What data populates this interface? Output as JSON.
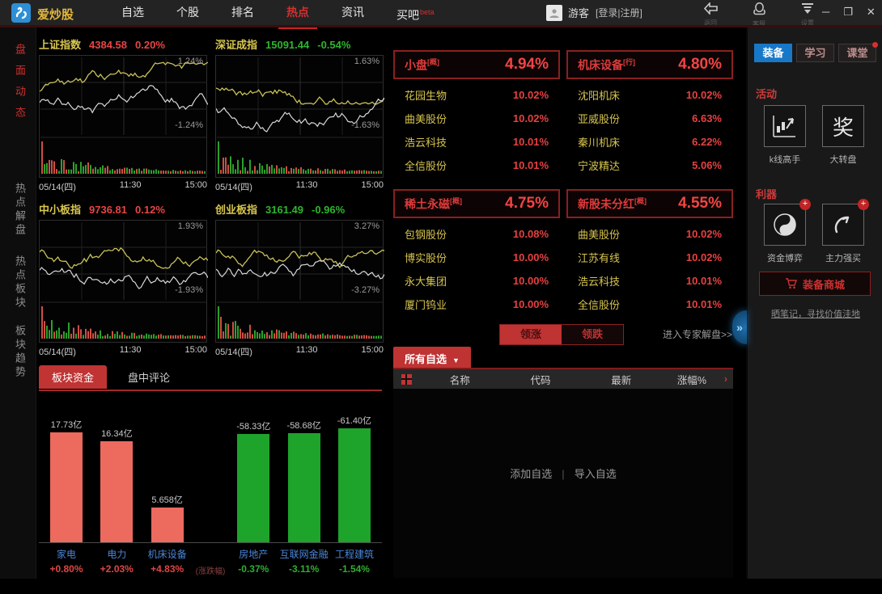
{
  "topbar": {
    "logo": "爱炒股",
    "nav": [
      {
        "label": "自选"
      },
      {
        "label": "个股"
      },
      {
        "label": "排名"
      },
      {
        "label": "热点",
        "active": true
      },
      {
        "label": "资讯"
      },
      {
        "label": "买吧",
        "badge": "beta"
      }
    ],
    "user": {
      "name": "游客",
      "login": "[登录",
      "sep": "|",
      "register": "注册]"
    },
    "tools": [
      {
        "label": "返回",
        "icon": "back-arrow-icon"
      },
      {
        "label": "客服",
        "icon": "qq-penguin-icon"
      },
      {
        "label": "设置",
        "icon": "settings-filter-icon"
      }
    ],
    "window_controls": {
      "minimize": "─",
      "maximize": "❐",
      "close": "✕"
    }
  },
  "sidebar_left": {
    "items": [
      {
        "label": "盘面动态",
        "active": true
      },
      {
        "label": "热点解盘"
      },
      {
        "label": "热点板块"
      },
      {
        "label": "板块趋势"
      }
    ]
  },
  "indices_axis": [
    "05/14(四)",
    "11:30",
    "15:00"
  ],
  "indices": [
    {
      "name": "上证指数",
      "value": "4384.58",
      "change": "0.20%",
      "up": true,
      "range_top": "1.24%",
      "range_bottom": "-1.24%"
    },
    {
      "name": "深证成指",
      "value": "15091.44",
      "change": "-0.54%",
      "up": false,
      "range_top": "1.63%",
      "range_bottom": "-1.63%"
    },
    {
      "name": "中小板指",
      "value": "9736.81",
      "change": "0.12%",
      "up": true,
      "range_top": "1.93%",
      "range_bottom": "-1.93%"
    },
    {
      "name": "创业板指",
      "value": "3161.49",
      "change": "-0.96%",
      "up": false,
      "range_top": "3.27%",
      "range_bottom": "-3.27%"
    }
  ],
  "sectors": {
    "panels": [
      {
        "name": "小盘",
        "tag": "[概]",
        "pct": "4.94%",
        "stocks": [
          [
            "花园生物",
            "10.02%"
          ],
          [
            "曲美股份",
            "10.02%"
          ],
          [
            "浩云科技",
            "10.01%"
          ],
          [
            "全信股份",
            "10.01%"
          ]
        ]
      },
      {
        "name": "机床设备",
        "tag": "[行]",
        "pct": "4.80%",
        "stocks": [
          [
            "沈阳机床",
            "10.02%"
          ],
          [
            "亚威股份",
            "6.63%"
          ],
          [
            "秦川机床",
            "6.22%"
          ],
          [
            "宁波精达",
            "5.06%"
          ]
        ]
      },
      {
        "name": "稀土永磁",
        "tag": "[概]",
        "pct": "4.75%",
        "stocks": [
          [
            "包钢股份",
            "10.08%"
          ],
          [
            "博实股份",
            "10.00%"
          ],
          [
            "永大集团",
            "10.00%"
          ],
          [
            "厦门钨业",
            "10.00%"
          ]
        ]
      },
      {
        "name": "新股未分红",
        "tag": "[概]",
        "pct": "4.55%",
        "stocks": [
          [
            "曲美股份",
            "10.02%"
          ],
          [
            "江苏有线",
            "10.02%"
          ],
          [
            "浩云科技",
            "10.01%"
          ],
          [
            "全信股份",
            "10.01%"
          ]
        ]
      }
    ],
    "toggle": {
      "up": "领涨",
      "down": "领跌"
    },
    "expert_link": "进入专家解盘>>"
  },
  "funds": {
    "tabs": [
      {
        "label": "板块资金",
        "active": true
      },
      {
        "label": "盘中评论"
      }
    ]
  },
  "chart_data": {
    "type": "bar",
    "title": "板块资金",
    "center_note": "(涨跌幅)",
    "series": [
      {
        "name": "资金流入",
        "color": "#ec6a5e",
        "categories": [
          "家电",
          "电力",
          "机床设备"
        ],
        "values_yi": [
          17.73,
          16.34,
          5.658
        ],
        "labels": [
          "17.73亿",
          "16.34亿",
          "5.658亿"
        ],
        "change_pct": [
          "+0.80%",
          "+2.03%",
          "+4.83%"
        ]
      },
      {
        "name": "资金流出",
        "color": "#1ea32b",
        "categories": [
          "房地产",
          "互联网金融",
          "工程建筑"
        ],
        "values_yi": [
          -58.33,
          -58.68,
          -61.4
        ],
        "labels": [
          "-58.33亿",
          "-58.68亿",
          "-61.40亿"
        ],
        "change_pct": [
          "-0.37%",
          "-3.11%",
          "-1.54%"
        ]
      }
    ]
  },
  "watchlist": {
    "tab": "所有自选",
    "caret": "▼",
    "columns": [
      "名称",
      "代码",
      "最新",
      "涨幅%"
    ],
    "arrow": "›",
    "empty_actions": [
      "添加自选",
      "导入自选"
    ],
    "separator": "|"
  },
  "sidebar_right": {
    "tabs": [
      {
        "label": "装备",
        "active": true
      },
      {
        "label": "学习"
      },
      {
        "label": "课堂",
        "badge_dot": true
      }
    ],
    "sections": [
      {
        "title": "活动",
        "items": [
          {
            "label": "k线高手",
            "icon": "kline-chart-icon"
          },
          {
            "label": "大转盘",
            "icon": "prize-icon",
            "glyph": "奖"
          }
        ]
      },
      {
        "title": "利器",
        "items": [
          {
            "label": "资金博弈",
            "icon": "yinyang-icon",
            "plus": "+"
          },
          {
            "label": "主力强买",
            "icon": "swoosh-arrow-icon",
            "plus": "+"
          }
        ]
      }
    ],
    "shop_button": "装备商城",
    "footer_link": "晒笔记，寻找价值洼地",
    "handle": "»"
  }
}
